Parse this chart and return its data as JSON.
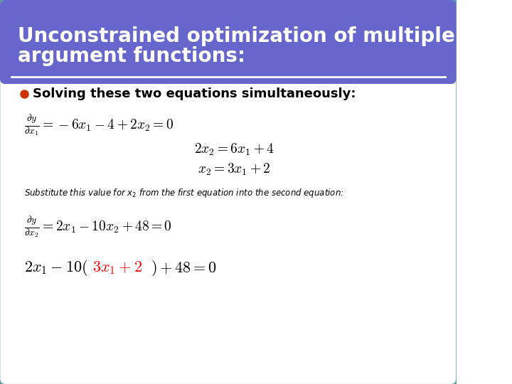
{
  "title_line1": "Unconstrained optimization of multiple",
  "title_line2": "argument functions:",
  "title_bg_color": "#6666CC",
  "title_text_color": "#FFFFFF",
  "slide_bg_color": "#FFFFFF",
  "border_color": "#5F9EA0",
  "bullet_color": "#CC3300",
  "bullet_text": "Solving these two equations simultaneously:",
  "eq1_lhs": "\\frac{\\partial y}{\\partial x_1} = -6x_1 - 4 + 2x_2 = 0",
  "eq2": "2x_2 = 6x_1 + 4",
  "eq3": "x_2 = 3x_1 + 2",
  "note_text": "Substitute this value for $x_2$ from the first equation into the second equation:",
  "eq4_lhs": "\\frac{\\partial y}{\\partial x_2} = 2x_1 - 10x_2 + 48 = 0",
  "eq5_black1": "2x_1 - 10(",
  "eq5_red": "3x_1 + 2",
  "eq5_black2": ") + 48 = 0"
}
